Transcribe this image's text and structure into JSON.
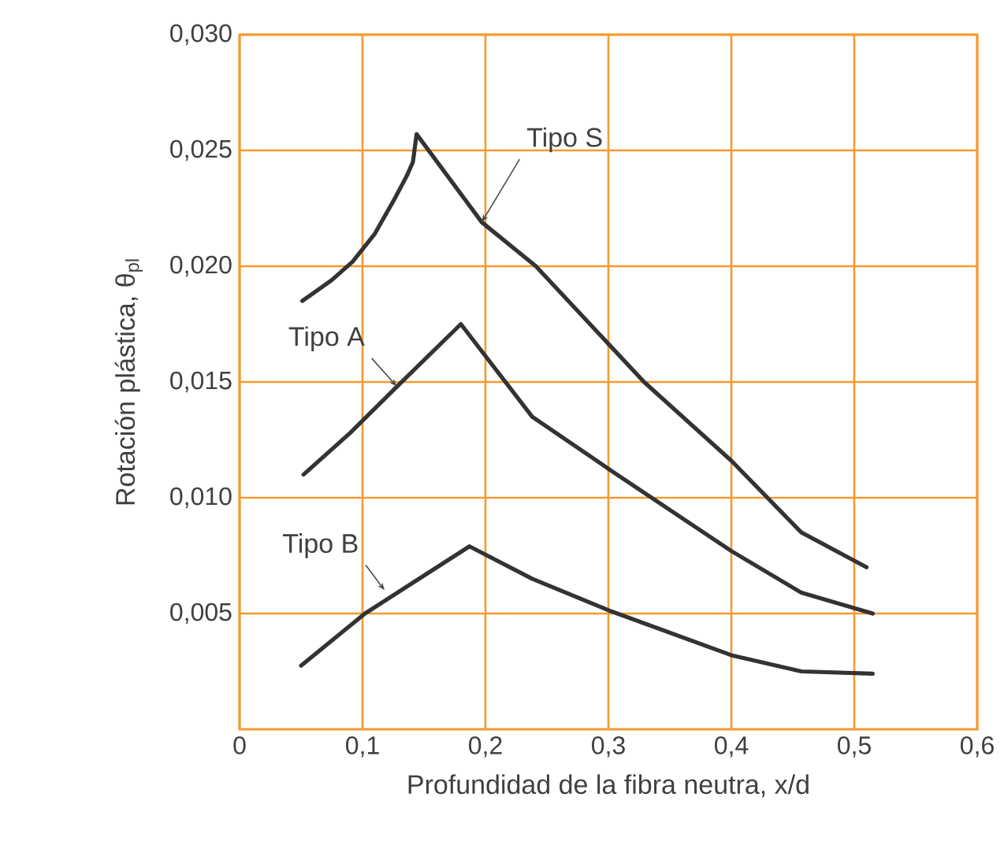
{
  "chart_data": {
    "type": "line",
    "xlabel": "Profundidad de la fibra neutra, x/d",
    "ylabel": "Rotación plástica, θ$_{pl}$",
    "xlim": [
      0,
      0.6
    ],
    "ylim": [
      0,
      0.03
    ],
    "xticks": [
      0,
      {
        "value": 0.1,
        "label": "0,1"
      },
      {
        "value": 0.2,
        "label": "0,2"
      },
      {
        "value": 0.3,
        "label": "0,3"
      },
      {
        "value": 0.4,
        "label": "0,4"
      },
      {
        "value": 0.5,
        "label": "0,5"
      },
      {
        "value": 0.6,
        "label": "0,6"
      }
    ],
    "yticks": [
      {
        "value": 0.005,
        "label": "0,005"
      },
      {
        "value": 0.01,
        "label": "0,010"
      },
      {
        "value": 0.015,
        "label": "0,015"
      },
      {
        "value": 0.02,
        "label": "0,020"
      },
      {
        "value": 0.025,
        "label": "0,025"
      },
      {
        "value": 0.03,
        "label": "0,030"
      }
    ],
    "grid": true,
    "marker": "none",
    "line_style": "solid",
    "series": [
      {
        "color": "#333333",
        "x": [
          0.051,
          0.075,
          0.092,
          0.11,
          0.126,
          0.136,
          0.141,
          0.144,
          0.197,
          0.241,
          0.329,
          0.4,
          0.457,
          0.51
        ],
        "values": [
          0.0185,
          0.0194,
          0.0202,
          0.0214,
          0.0229,
          0.0239,
          0.0245,
          0.0257,
          0.0219,
          0.02,
          0.015,
          0.0116,
          0.0085,
          0.007
        ]
      },
      {
        "color": "#333333",
        "x": [
          0.052,
          0.09,
          0.128,
          0.18,
          0.238,
          0.307,
          0.4,
          0.457,
          0.515
        ],
        "values": [
          0.011,
          0.0128,
          0.0148,
          0.0175,
          0.0135,
          0.011,
          0.0077,
          0.0059,
          0.005
        ]
      },
      {
        "color": "#333333",
        "x": [
          0.05,
          0.102,
          0.187,
          0.238,
          0.302,
          0.4,
          0.457,
          0.515
        ],
        "values": [
          0.00275,
          0.005,
          0.0079,
          0.0065,
          0.0051,
          0.0032,
          0.0025,
          0.0024
        ]
      }
    ],
    "annotations": [
      {
        "text": "Tipo S",
        "x": 0.197,
        "y": 0.0219
      },
      {
        "text": "Tipo A",
        "x": 0.128,
        "y": 0.0148
      },
      {
        "text": "Tipo B",
        "x": 0.118,
        "y": 0.006
      }
    ]
  }
}
